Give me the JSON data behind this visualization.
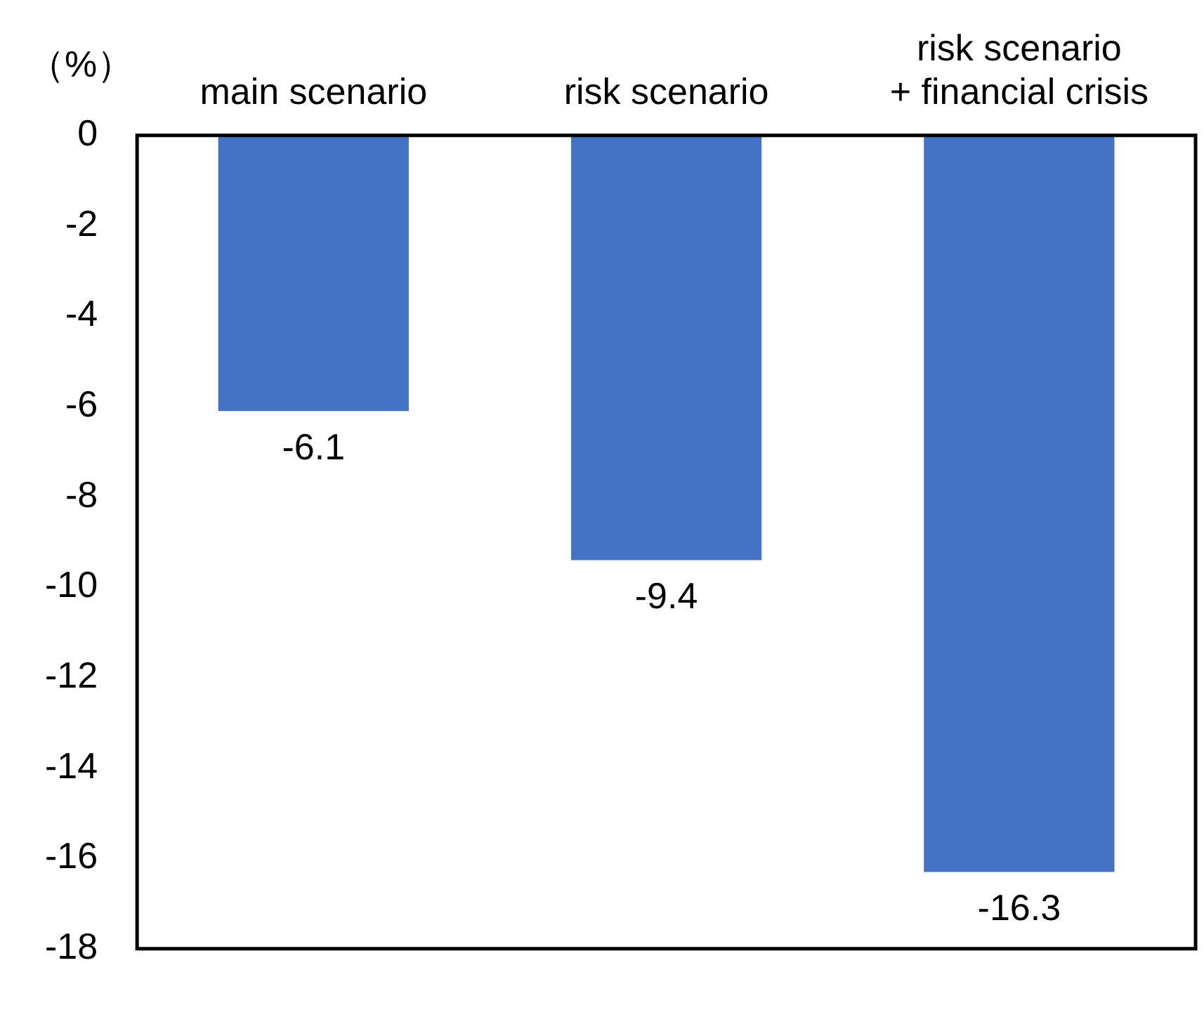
{
  "chart_data": {
    "type": "bar",
    "ylabel": "（%）",
    "categories": [
      "main scenario",
      "risk scenario",
      "risk scenario\n+ financial crisis"
    ],
    "values": [
      -6.1,
      -9.4,
      -16.3
    ],
    "color": "#4472c4",
    "ylim": [
      -18,
      0
    ],
    "yticks": [
      0,
      -2,
      -4,
      -6,
      -8,
      -10,
      -12,
      -14,
      -16,
      -18
    ],
    "grid": false,
    "legend": false,
    "data_labels": true
  }
}
